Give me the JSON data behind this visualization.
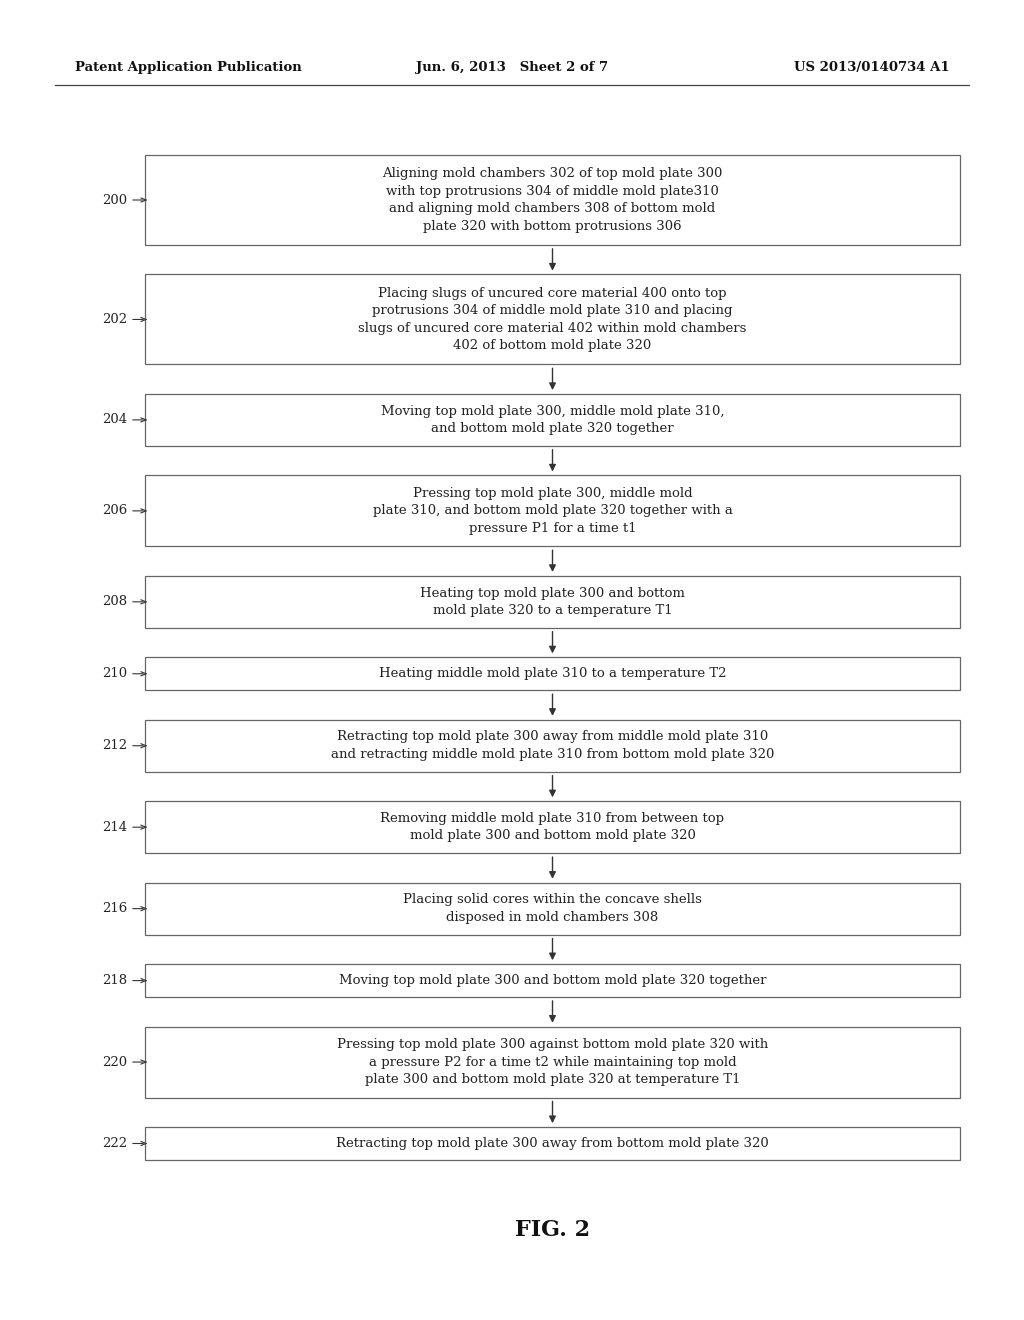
{
  "header_left": "Patent Application Publication",
  "header_middle": "Jun. 6, 2013   Sheet 2 of 7",
  "header_right": "US 2013/0140734 A1",
  "figure_label": "FIG. 2",
  "background_color": "#ffffff",
  "box_edge_color": "#666666",
  "text_color": "#222222",
  "arrow_color": "#333333",
  "steps": [
    {
      "id": "200",
      "text": "Aligning mold chambers 302 of top mold plate 300\nwith top protrusions 304 of middle mold plate310\nand aligning mold chambers 308 of bottom mold\nplate 320 with bottom protrusions 306",
      "lines": 4
    },
    {
      "id": "202",
      "text": "Placing slugs of uncured core material 400 onto top\nprotrusions 304 of middle mold plate 310 and placing\nslugs of uncured core material 402 within mold chambers\n402 of bottom mold plate 320",
      "lines": 4
    },
    {
      "id": "204",
      "text": "Moving top mold plate 300, middle mold plate 310,\nand bottom mold plate 320 together",
      "lines": 2
    },
    {
      "id": "206",
      "text": "Pressing top mold plate 300, middle mold\nplate 310, and bottom mold plate 320 together with a\npressure P1 for a time t1",
      "lines": 3
    },
    {
      "id": "208",
      "text": "Heating top mold plate 300 and bottom\nmold plate 320 to a temperature T1",
      "lines": 2
    },
    {
      "id": "210",
      "text": "Heating middle mold plate 310 to a temperature T2",
      "lines": 1
    },
    {
      "id": "212",
      "text": "Retracting top mold plate 300 away from middle mold plate 310\nand retracting middle mold plate 310 from bottom mold plate 320",
      "lines": 2
    },
    {
      "id": "214",
      "text": "Removing middle mold plate 310 from between top\nmold plate 300 and bottom mold plate 320",
      "lines": 2
    },
    {
      "id": "216",
      "text": "Placing solid cores within the concave shells\ndisposed in mold chambers 308",
      "lines": 2
    },
    {
      "id": "218",
      "text": "Moving top mold plate 300 and bottom mold plate 320 together",
      "lines": 1
    },
    {
      "id": "220",
      "text": "Pressing top mold plate 300 against bottom mold plate 320 with\na pressure P2 for a time t2 while maintaining top mold\nplate 300 and bottom mold plate 320 at temperature T1",
      "lines": 3
    },
    {
      "id": "222",
      "text": "Retracting top mold plate 300 away from bottom mold plate 320",
      "lines": 1
    }
  ]
}
